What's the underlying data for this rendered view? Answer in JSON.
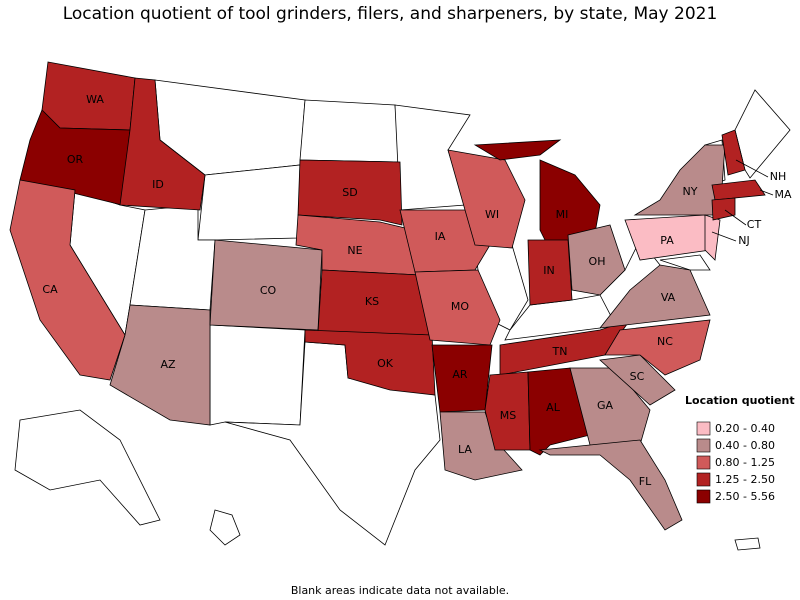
{
  "title": "Location quotient of tool grinders, filers, and sharpeners, by state, May 2021",
  "footnote": "Blank areas indicate data not available.",
  "legend": {
    "title": "Location quotient",
    "items": [
      {
        "label": "0.20 - 0.40",
        "color": "#fbbcc4"
      },
      {
        "label": "0.40 - 0.80",
        "color": "#b98b8b"
      },
      {
        "label": "0.80 - 1.25",
        "color": "#d05a5a"
      },
      {
        "label": "1.25 - 2.50",
        "color": "#b22222"
      },
      {
        "label": "2.50 - 5.56",
        "color": "#8b0000"
      }
    ]
  },
  "states": [
    {
      "label": "WA",
      "color": "#b22222"
    },
    {
      "label": "OR",
      "color": "#8b0000"
    },
    {
      "label": "CA",
      "color": "#d05a5a"
    },
    {
      "label": "ID",
      "color": "#b22222"
    },
    {
      "label": "AZ",
      "color": "#b98b8b"
    },
    {
      "label": "CO",
      "color": "#b98b8b"
    },
    {
      "label": "SD",
      "color": "#b22222"
    },
    {
      "label": "NE",
      "color": "#d05a5a"
    },
    {
      "label": "KS",
      "color": "#b22222"
    },
    {
      "label": "OK",
      "color": "#b22222"
    },
    {
      "label": "IA",
      "color": "#d05a5a"
    },
    {
      "label": "MO",
      "color": "#d05a5a"
    },
    {
      "label": "AR",
      "color": "#8b0000"
    },
    {
      "label": "LA",
      "color": "#b98b8b"
    },
    {
      "label": "WI",
      "color": "#d05a5a"
    },
    {
      "label": "MI",
      "color": "#8b0000"
    },
    {
      "label": "IN",
      "color": "#b22222"
    },
    {
      "label": "OH",
      "color": "#b98b8b"
    },
    {
      "label": "TN",
      "color": "#b22222"
    },
    {
      "label": "MS",
      "color": "#b22222"
    },
    {
      "label": "AL",
      "color": "#8b0000"
    },
    {
      "label": "GA",
      "color": "#b98b8b"
    },
    {
      "label": "FL",
      "color": "#b98b8b"
    },
    {
      "label": "SC",
      "color": "#b98b8b"
    },
    {
      "label": "NC",
      "color": "#d05a5a"
    },
    {
      "label": "VA",
      "color": "#b98b8b"
    },
    {
      "label": "PA",
      "color": "#fbbcc4"
    },
    {
      "label": "NY",
      "color": "#b98b8b"
    },
    {
      "label": "NJ",
      "color": "#fbbcc4"
    },
    {
      "label": "NH",
      "color": "#b22222"
    },
    {
      "label": "MA",
      "color": "#b22222"
    },
    {
      "label": "CT",
      "color": "#b22222"
    }
  ]
}
